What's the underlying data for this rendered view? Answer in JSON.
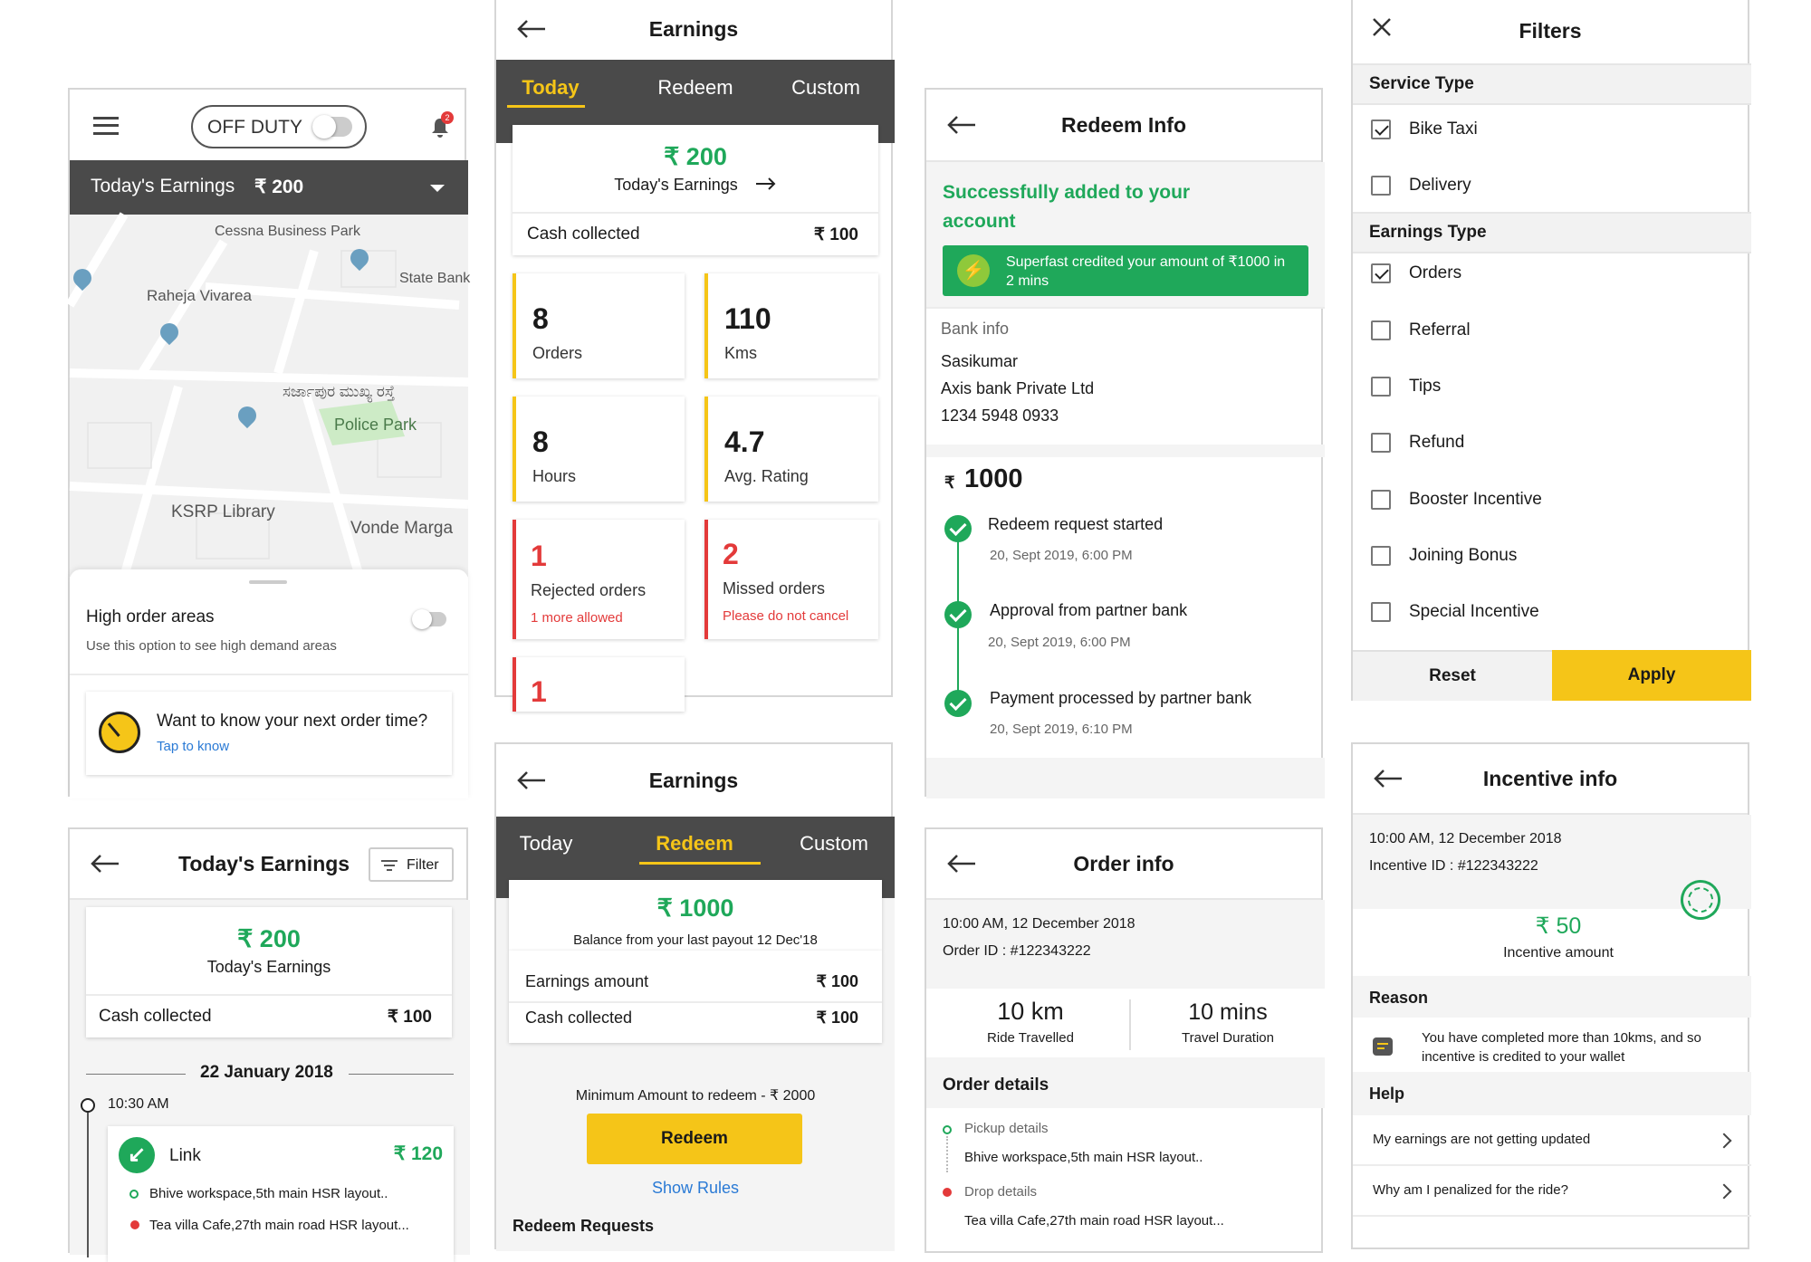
{
  "home": {
    "duty": "OFF DUTY",
    "notif_count": "2",
    "earn_label": "Today's Earnings",
    "earn_value": "₹ 200",
    "map_labels": [
      "Cessna Business Park",
      "State Bank",
      "Raheja Vivarea",
      "ಸರ್ಜಾಪುರ ಮುಖ್ಯ ರಸ್ತೆ",
      "Police Park",
      "KSRP Library",
      "Vonde Marga"
    ],
    "high_title": "High order areas",
    "high_sub": "Use this option to see high demand areas",
    "next_q": "Want to know your next order time?",
    "next_link": "Tap to know"
  },
  "today": {
    "title": "Earnings",
    "tabs": [
      "Today",
      "Redeem",
      "Custom"
    ],
    "amount": "₹ 200",
    "amount_label": "Today's Earnings",
    "cash_label": "Cash collected",
    "cash_value": "₹ 100",
    "stats": [
      {
        "v": "8",
        "l": "Orders"
      },
      {
        "v": "110",
        "l": "Kms"
      },
      {
        "v": "8",
        "l": "Hours"
      },
      {
        "v": "4.7",
        "l": "Avg. Rating"
      },
      {
        "v": "1",
        "l": "Rejected orders",
        "n": "1 more allowed"
      },
      {
        "v": "2",
        "l": "Missed orders",
        "n": "Please do not cancel"
      },
      {
        "v": "1"
      }
    ]
  },
  "redeem_info": {
    "title": "Redeem Info",
    "success": "Successfully added to your account",
    "banner": "Superfast credited your amount of ₹1000 in 2 mins",
    "bank_label": "Bank info",
    "bank_name": "Sasikumar",
    "bank": "Axis bank Private Ltd",
    "acct": "1234 5948 0933",
    "rupee": "₹",
    "amount": "1000",
    "steps": [
      {
        "t": "Redeem request started",
        "d": "20, Sept 2019, 6:00 PM"
      },
      {
        "t": "Approval from partner bank",
        "d": "20, Sept 2019, 6:00 PM"
      },
      {
        "t": "Payment processed by partner bank",
        "d": "20, Sept 2019, 6:10 PM"
      }
    ]
  },
  "filters": {
    "title": "Filters",
    "service_h": "Service Type",
    "service": [
      "Bike Taxi",
      "Delivery"
    ],
    "earn_h": "Earnings Type",
    "earn": [
      "Orders",
      "Referral",
      "Tips",
      "Refund",
      "Booster Incentive",
      "Joining Bonus",
      "Special Incentive"
    ],
    "reset": "Reset",
    "apply": "Apply"
  },
  "todays": {
    "title": "Today's Earnings",
    "filter": "Filter",
    "amount": "₹ 200",
    "amount_label": "Today's Earnings",
    "cash_label": "Cash collected",
    "cash_value": "₹ 100",
    "date": "22 January 2018",
    "time": "10:30 AM",
    "trip": "Link",
    "trip_amt": "₹ 120",
    "pickup": "Bhive workspace,5th main HSR layout..",
    "drop": "Tea villa Cafe,27th main road HSR layout..."
  },
  "redeem": {
    "title": "Earnings",
    "tabs": [
      "Today",
      "Redeem",
      "Custom"
    ],
    "amount": "₹ 1000",
    "amount_label": "Balance from your last payout 12 Dec'18",
    "earn_label": "Earnings amount",
    "earn_value": "₹ 100",
    "cash_label": "Cash collected",
    "cash_value": "₹ 100",
    "min": "Minimum Amount to redeem - ₹ 2000",
    "btn": "Redeem",
    "rules": "Show Rules",
    "requests": "Redeem Requests"
  },
  "order": {
    "title": "Order info",
    "time": "10:00 AM, 12 December 2018",
    "id": "Order ID : #122343222",
    "km": "10 km",
    "km_l": "Ride Travelled",
    "mins": "10 mins",
    "mins_l": "Travel Duration",
    "details_h": "Order details",
    "pickup_l": "Pickup details",
    "pickup": "Bhive workspace,5th main HSR layout..",
    "drop_l": "Drop details",
    "drop": "Tea villa Cafe,27th main road HSR layout..."
  },
  "incentive": {
    "title": "Incentive info",
    "time": "10:00 AM, 12 December 2018",
    "id": "Incentive ID : #122343222",
    "amount": "₹ 50",
    "amount_label": "Incentive amount",
    "reason_h": "Reason",
    "reason": "You have completed more than 10kms, and so incentive is credited to your wallet",
    "help_h": "Help",
    "help": [
      "My earnings are not getting updated",
      "Why am I penalized for the ride?"
    ]
  },
  "colors": {
    "accent": "#f5c518",
    "green": "#1fa85a",
    "red": "#e33a3a",
    "dark": "#4a4a4a"
  }
}
